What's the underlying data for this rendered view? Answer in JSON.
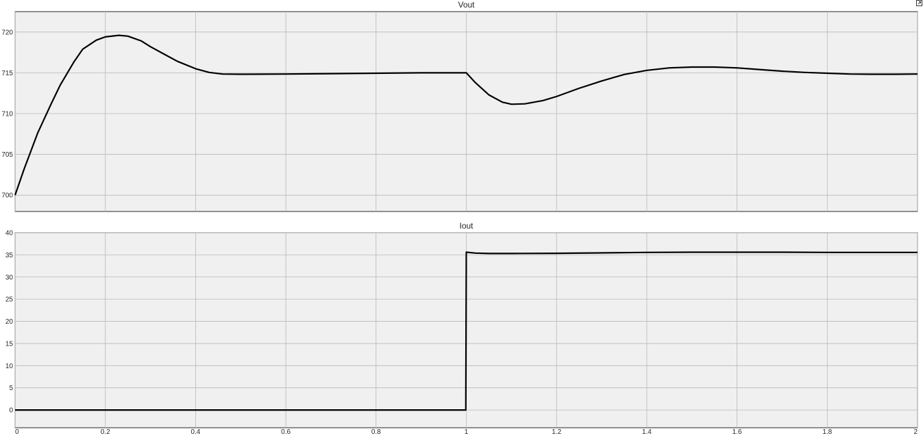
{
  "window": {
    "expand_icon": "expand-icon"
  },
  "chart_data": [
    {
      "type": "line",
      "title": "Vout",
      "xlabel": "",
      "ylabel": "",
      "xlim": [
        0,
        2
      ],
      "ylim": [
        698,
        722.5
      ],
      "xticks": [
        0,
        0.2,
        0.4,
        0.6,
        0.8,
        1,
        1.2,
        1.4,
        1.6,
        1.8,
        2
      ],
      "yticks": [
        700,
        705,
        710,
        715,
        720
      ],
      "grid": true,
      "series": [
        {
          "color": "#000000",
          "x": [
            0,
            0.02,
            0.05,
            0.08,
            0.1,
            0.13,
            0.15,
            0.18,
            0.2,
            0.23,
            0.25,
            0.28,
            0.3,
            0.33,
            0.36,
            0.4,
            0.43,
            0.46,
            0.5,
            0.6,
            0.7,
            0.8,
            0.9,
            0.99,
            1.0,
            1.02,
            1.05,
            1.08,
            1.1,
            1.13,
            1.17,
            1.2,
            1.25,
            1.3,
            1.35,
            1.4,
            1.45,
            1.5,
            1.55,
            1.6,
            1.65,
            1.7,
            1.75,
            1.8,
            1.85,
            1.9,
            1.95,
            2.0
          ],
          "y": [
            700,
            703.2,
            707.6,
            711.2,
            713.5,
            716.3,
            717.9,
            719.0,
            719.4,
            719.6,
            719.5,
            718.9,
            718.2,
            717.3,
            716.4,
            715.5,
            715.05,
            714.85,
            714.82,
            714.85,
            714.9,
            714.95,
            715.0,
            715.0,
            715.0,
            713.8,
            712.3,
            711.4,
            711.15,
            711.2,
            711.6,
            712.1,
            713.1,
            714.0,
            714.8,
            715.3,
            715.6,
            715.7,
            715.7,
            715.6,
            715.4,
            715.2,
            715.05,
            714.95,
            714.85,
            714.82,
            714.82,
            714.85
          ]
        }
      ]
    },
    {
      "type": "line",
      "title": "Iout",
      "xlabel": "",
      "ylabel": "",
      "xlim": [
        0,
        2
      ],
      "ylim": [
        -4,
        40
      ],
      "xticks": [
        0,
        0.2,
        0.4,
        0.6,
        0.8,
        1,
        1.2,
        1.4,
        1.6,
        1.8,
        2
      ],
      "xticklabels": [
        "0",
        "0.2",
        "0.4",
        "0.6",
        "0.8",
        "1",
        "1.2",
        "1.4",
        "1.6",
        "1.8",
        "2"
      ],
      "yticks": [
        0,
        5,
        10,
        15,
        20,
        25,
        30,
        35,
        40
      ],
      "grid": true,
      "series": [
        {
          "color": "#000000",
          "x": [
            0,
            0.999,
            1.0,
            1.02,
            1.05,
            1.1,
            1.2,
            1.3,
            1.4,
            1.5,
            1.6,
            1.7,
            1.8,
            1.9,
            2.0
          ],
          "y": [
            0,
            0,
            35.6,
            35.4,
            35.3,
            35.3,
            35.35,
            35.45,
            35.55,
            35.6,
            35.6,
            35.6,
            35.55,
            35.55,
            35.55
          ]
        }
      ]
    }
  ]
}
